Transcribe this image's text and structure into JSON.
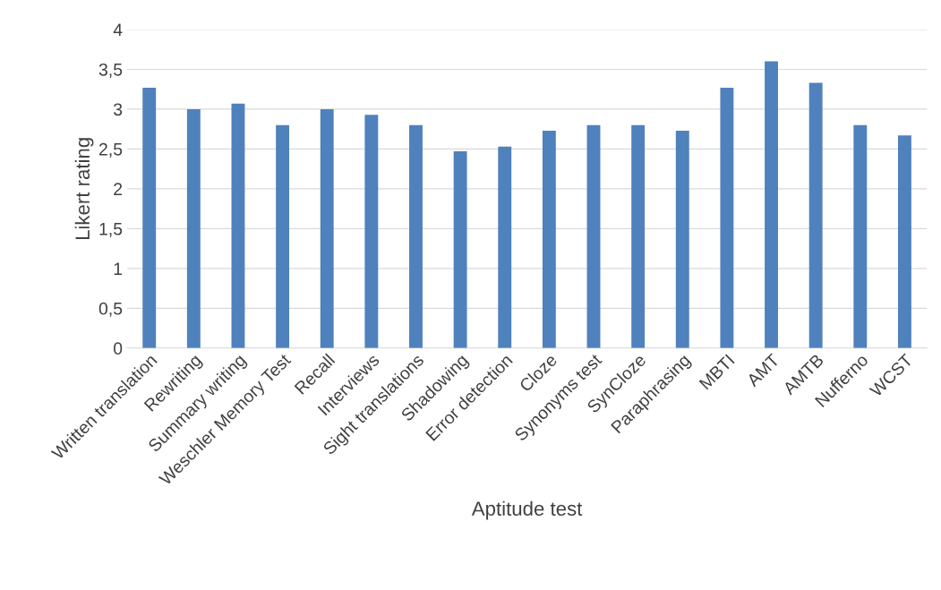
{
  "chart_data": {
    "type": "bar",
    "xlabel": "Aptitude test",
    "ylabel": "Likert rating",
    "categories": [
      "Written translation",
      "Rewriting",
      "Summary writing",
      "Weschler Memory Test",
      "Recall",
      "Interviews",
      "Sight translations",
      "Shadowing",
      "Error detection",
      "Cloze",
      "Synonyms test",
      "SynCloze",
      "Paraphrasing",
      "MBTI",
      "AMT",
      "AMTB",
      "Nufferno",
      "WCST"
    ],
    "values": [
      3.27,
      3.0,
      3.07,
      2.8,
      3.0,
      2.93,
      2.8,
      2.47,
      2.53,
      2.73,
      2.8,
      2.8,
      2.73,
      3.27,
      3.6,
      3.33,
      2.8,
      2.67
    ],
    "color": "#4f81bd",
    "ylim": [
      0,
      4
    ],
    "yticks": [
      0,
      {
        "value": 0.5,
        "label": "0,5"
      },
      1,
      {
        "value": 1.5,
        "label": "1,5"
      },
      2,
      {
        "value": 2.5,
        "label": "2,5"
      },
      3,
      {
        "value": 3.5,
        "label": "3,5"
      },
      4
    ],
    "grid": "y"
  }
}
